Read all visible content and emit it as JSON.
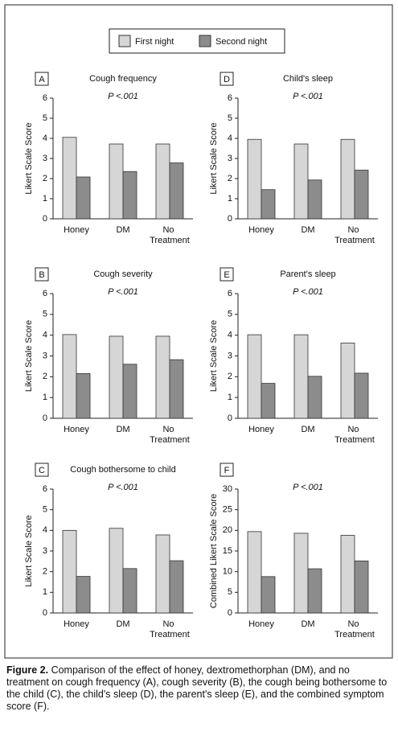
{
  "legend": [
    {
      "name": "First night",
      "color": "#d6d6d6"
    },
    {
      "name": "Second night",
      "color": "#8c8c8c"
    }
  ],
  "chart_data": [
    {
      "type": "bar",
      "panel": "A",
      "title": "Cough frequency",
      "annotation": "P <.001",
      "ylabel": "Likert Scale Score",
      "categories": [
        "Honey",
        "DM",
        "No Treatment"
      ],
      "ylim": [
        0,
        6
      ],
      "yticks": [
        0,
        1,
        2,
        3,
        4,
        5,
        6
      ],
      "series": [
        {
          "values": [
            4.05,
            3.72,
            3.72
          ]
        },
        {
          "values": [
            2.08,
            2.35,
            2.78
          ]
        }
      ]
    },
    {
      "type": "bar",
      "panel": "B",
      "title": "Cough severity",
      "annotation": "P <.001",
      "ylabel": "Likert Scale Score",
      "categories": [
        "Honey",
        "DM",
        "No Treatment"
      ],
      "ylim": [
        0,
        6
      ],
      "yticks": [
        0,
        1,
        2,
        3,
        4,
        5,
        6
      ],
      "series": [
        {
          "values": [
            4.03,
            3.95,
            3.95
          ]
        },
        {
          "values": [
            2.15,
            2.6,
            2.82
          ]
        }
      ]
    },
    {
      "type": "bar",
      "panel": "C",
      "title": "Cough bothersome to child",
      "annotation": "P <.001",
      "ylabel": "Likert Scale Score",
      "categories": [
        "Honey",
        "DM",
        "No Treatment"
      ],
      "ylim": [
        0,
        6
      ],
      "yticks": [
        0,
        1,
        2,
        3,
        4,
        5,
        6
      ],
      "series": [
        {
          "values": [
            4.0,
            4.1,
            3.78
          ]
        },
        {
          "values": [
            1.77,
            2.15,
            2.53
          ]
        }
      ]
    },
    {
      "type": "bar",
      "panel": "D",
      "title": "Child's sleep",
      "annotation": "P <.001",
      "ylabel": "Likert Scale Score",
      "categories": [
        "Honey",
        "DM",
        "No Treatment"
      ],
      "ylim": [
        0,
        6
      ],
      "yticks": [
        0,
        1,
        2,
        3,
        4,
        5,
        6
      ],
      "series": [
        {
          "values": [
            3.95,
            3.72,
            3.95
          ]
        },
        {
          "values": [
            1.45,
            1.93,
            2.42
          ]
        }
      ]
    },
    {
      "type": "bar",
      "panel": "E",
      "title": "Parent's sleep",
      "annotation": "P <.001",
      "ylabel": "Likert Scale Score",
      "categories": [
        "Honey",
        "DM",
        "No Treatment"
      ],
      "ylim": [
        0,
        6
      ],
      "yticks": [
        0,
        1,
        2,
        3,
        4,
        5,
        6
      ],
      "series": [
        {
          "values": [
            4.02,
            4.02,
            3.62
          ]
        },
        {
          "values": [
            1.68,
            2.02,
            2.17
          ]
        }
      ]
    },
    {
      "type": "bar",
      "panel": "F",
      "title": "",
      "annotation": "P <.001",
      "ylabel": "Combined Likert Scale Score",
      "categories": [
        "Honey",
        "DM",
        "No Treatment"
      ],
      "ylim": [
        0,
        30
      ],
      "yticks": [
        0,
        5,
        10,
        15,
        20,
        25,
        30
      ],
      "series": [
        {
          "values": [
            19.7,
            19.3,
            18.8
          ]
        },
        {
          "values": [
            8.8,
            10.7,
            12.6
          ]
        }
      ]
    }
  ],
  "caption": {
    "label": "Figure 2.",
    "text": "Comparison of the effect of honey, dextromethorphan (DM), and no treatment on cough frequency (A), cough severity (B), the cough being bothersome to the child (C), the child's sleep (D), the parent's sleep (E), and the combined symptom score (F)."
  }
}
